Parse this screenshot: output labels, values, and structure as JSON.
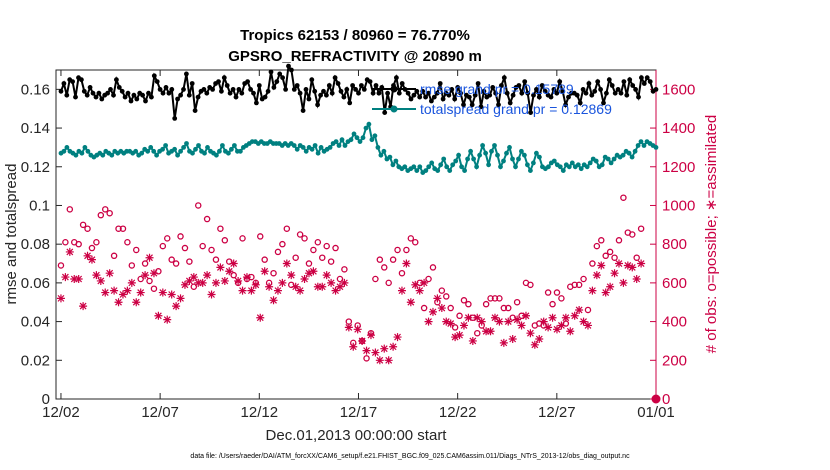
{
  "chart_data": {
    "type": "line",
    "title_line1": "Tropics 62153 / 80960 = 76.770%",
    "title_line2": "GPSRO_REFRACTIVITY @ 20890 m",
    "xlabel": "Dec.01,2013 00:00:00 start",
    "ylabel_left": "rmse and totalspread",
    "ylabel_right": "# of obs: o=possible; ∗=assimilated",
    "x_ticks": [
      "12/02",
      "12/07",
      "12/12",
      "12/17",
      "12/22",
      "12/27",
      "01/01"
    ],
    "x_tick_days": [
      1,
      6,
      11,
      16,
      21,
      26,
      31
    ],
    "xlim_days": [
      0.75,
      31
    ],
    "y_left_ticks": [
      "0",
      "0.02",
      "0.04",
      "0.06",
      "0.08",
      "0.1",
      "0.12",
      "0.14",
      "0.16"
    ],
    "y_left_lim": [
      0,
      0.17
    ],
    "y_right_ticks": [
      "0",
      "200",
      "400",
      "600",
      "800",
      "1000",
      "1200",
      "1400",
      "1600"
    ],
    "y_right_lim": [
      0,
      1700
    ],
    "footnote": "data file: /Users/raeder/DAI/ATM_forcXX/CAM6_setup/f.e21.FHIST_BGC.f09_025.CAM6assim.011/Diags_NTrS_2013-12/obs_diag_output.nc",
    "legend_placement": "top-right",
    "series": [
      {
        "name": "rmse",
        "legend_label": "rmse grand pr = 0.15789",
        "color": "#000000",
        "marker": "filled-circle",
        "axis": "left",
        "values": [
          0.159,
          0.163,
          0.157,
          0.165,
          0.164,
          0.156,
          0.166,
          0.165,
          0.159,
          0.157,
          0.161,
          0.158,
          0.156,
          0.158,
          0.155,
          0.157,
          0.158,
          0.16,
          0.157,
          0.165,
          0.161,
          0.159,
          0.156,
          0.158,
          0.154,
          0.157,
          0.155,
          0.158,
          0.157,
          0.154,
          0.158,
          0.156,
          0.167,
          0.164,
          0.16,
          0.158,
          0.161,
          0.158,
          0.16,
          0.145,
          0.155,
          0.157,
          0.16,
          0.168,
          0.157,
          0.163,
          0.149,
          0.156,
          0.159,
          0.16,
          0.158,
          0.161,
          0.16,
          0.163,
          0.164,
          0.159,
          0.166,
          0.162,
          0.158,
          0.16,
          0.156,
          0.16,
          0.158,
          0.163,
          0.164,
          0.16,
          0.158,
          0.153,
          0.162,
          0.155,
          0.156,
          0.159,
          0.169,
          0.161,
          0.164,
          0.168,
          0.166,
          0.16,
          0.172,
          0.17,
          0.16,
          0.162,
          0.158,
          0.149,
          0.16,
          0.155,
          0.165,
          0.159,
          0.152,
          0.157,
          0.159,
          0.157,
          0.162,
          0.158,
          0.166,
          0.163,
          0.159,
          0.156,
          0.16,
          0.153,
          0.162,
          0.16,
          0.158,
          0.162,
          0.16,
          0.165,
          0.164,
          0.158,
          0.162,
          0.158,
          0.161,
          0.148,
          0.158,
          0.151,
          0.162,
          0.166,
          0.158,
          0.163,
          0.16,
          0.158,
          0.155,
          0.157,
          0.159,
          0.156,
          0.159,
          0.156,
          0.158,
          0.154,
          0.156,
          0.158,
          0.163,
          0.155,
          0.158,
          0.157,
          0.16,
          0.155,
          0.161,
          0.158,
          0.152,
          0.157,
          0.156,
          0.152,
          0.157,
          0.163,
          0.151,
          0.159,
          0.156,
          0.157,
          0.161,
          0.158,
          0.152,
          0.162,
          0.166,
          0.158,
          0.153,
          0.157,
          0.161,
          0.162,
          0.158,
          0.164,
          0.158,
          0.148,
          0.157,
          0.16,
          0.156,
          0.162,
          0.159,
          0.157,
          0.156,
          0.16,
          0.158,
          0.164,
          0.159,
          0.152,
          0.156,
          0.158,
          0.158,
          0.157,
          0.153,
          0.16,
          0.158,
          0.163,
          0.157,
          0.159,
          0.164,
          0.16,
          0.153,
          0.158,
          0.165,
          0.162,
          0.158,
          0.16,
          0.158,
          0.164,
          0.157,
          0.165,
          0.162,
          0.16,
          0.156,
          0.166,
          0.163,
          0.166,
          0.164,
          0.159,
          0.16
        ]
      },
      {
        "name": "totalspread",
        "legend_label": "totalspread grand pr = 0.12869",
        "color": "#008080",
        "marker": "filled-circle",
        "axis": "left",
        "values": [
          0.127,
          0.128,
          0.13,
          0.128,
          0.127,
          0.126,
          0.128,
          0.127,
          0.13,
          0.128,
          0.126,
          0.125,
          0.126,
          0.127,
          0.126,
          0.128,
          0.127,
          0.126,
          0.128,
          0.127,
          0.128,
          0.127,
          0.128,
          0.128,
          0.127,
          0.128,
          0.126,
          0.127,
          0.129,
          0.128,
          0.13,
          0.128,
          0.126,
          0.128,
          0.129,
          0.131,
          0.127,
          0.128,
          0.129,
          0.126,
          0.128,
          0.13,
          0.132,
          0.128,
          0.127,
          0.129,
          0.131,
          0.128,
          0.127,
          0.13,
          0.128,
          0.127,
          0.126,
          0.128,
          0.131,
          0.128,
          0.127,
          0.129,
          0.131,
          0.128,
          0.128,
          0.13,
          0.131,
          0.132,
          0.133,
          0.133,
          0.132,
          0.133,
          0.132,
          0.132,
          0.133,
          0.132,
          0.132,
          0.132,
          0.131,
          0.132,
          0.131,
          0.132,
          0.131,
          0.129,
          0.131,
          0.13,
          0.128,
          0.13,
          0.129,
          0.131,
          0.127,
          0.13,
          0.128,
          0.129,
          0.13,
          0.132,
          0.133,
          0.131,
          0.134,
          0.131,
          0.133,
          0.134,
          0.137,
          0.135,
          0.133,
          0.135,
          0.14,
          0.142,
          0.134,
          0.136,
          0.13,
          0.126,
          0.128,
          0.124,
          0.125,
          0.121,
          0.123,
          0.12,
          0.119,
          0.12,
          0.118,
          0.119,
          0.12,
          0.118,
          0.12,
          0.117,
          0.118,
          0.12,
          0.122,
          0.119,
          0.118,
          0.121,
          0.124,
          0.12,
          0.118,
          0.121,
          0.123,
          0.126,
          0.12,
          0.118,
          0.124,
          0.128,
          0.124,
          0.12,
          0.126,
          0.131,
          0.127,
          0.121,
          0.128,
          0.131,
          0.126,
          0.12,
          0.123,
          0.127,
          0.13,
          0.124,
          0.12,
          0.124,
          0.128,
          0.126,
          0.121,
          0.118,
          0.122,
          0.127,
          0.125,
          0.12,
          0.119,
          0.12,
          0.122,
          0.123,
          0.121,
          0.12,
          0.118,
          0.121,
          0.12,
          0.122,
          0.12,
          0.121,
          0.119,
          0.121,
          0.12,
          0.122,
          0.124,
          0.123,
          0.12,
          0.121,
          0.125,
          0.124,
          0.122,
          0.124,
          0.126,
          0.125,
          0.126,
          0.128,
          0.127,
          0.125,
          0.128,
          0.131,
          0.133,
          0.131,
          0.133,
          0.132,
          0.131,
          0.13
        ]
      },
      {
        "name": "possible",
        "color": "#cc0044",
        "marker": "open-circle",
        "axis": "right",
        "values": [
          690,
          810,
          980,
          810,
          800,
          900,
          880,
          780,
          810,
          950,
          980,
          960,
          740,
          880,
          880,
          810,
          690,
          770,
          620,
          700,
          610,
          570,
          660,
          790,
          830,
          720,
          700,
          840,
          780,
          710,
          580,
          1000,
          790,
          930,
          770,
          720,
          880,
          820,
          710,
          640,
          600,
          830,
          620,
          630,
          600,
          840,
          720,
          600,
          650,
          760,
          800,
          880,
          590,
          730,
          850,
          830,
          700,
          770,
          810,
          730,
          790,
          710,
          780,
          620,
          670,
          400,
          290,
          380,
          300,
          210,
          340,
          620,
          720,
          680,
          600,
          720,
          770,
          650,
          770,
          830,
          810,
          600,
          470,
          620,
          680,
          500,
          560,
          530,
          470,
          370,
          430,
          510,
          490,
          420,
          340,
          380,
          490,
          520,
          520,
          520,
          470,
          470,
          420,
          500,
          430,
          600,
          590,
          380,
          390,
          380,
          550,
          490,
          550,
          520,
          390,
          580,
          590,
          590,
          620,
          460,
          700,
          790,
          820,
          740,
          760,
          730,
          820,
          1040,
          860,
          850,
          730,
          880
        ]
      },
      {
        "name": "assimilated",
        "color": "#cc0044",
        "marker": "asterisk",
        "axis": "right",
        "values": [
          520,
          630,
          760,
          620,
          620,
          480,
          740,
          720,
          640,
          610,
          550,
          650,
          560,
          500,
          540,
          560,
          600,
          500,
          550,
          640,
          730,
          650,
          430,
          550,
          410,
          540,
          480,
          520,
          590,
          610,
          630,
          600,
          600,
          640,
          540,
          600,
          680,
          610,
          660,
          700,
          610,
          560,
          630,
          560,
          590,
          420,
          660,
          580,
          510,
          560,
          600,
          700,
          640,
          580,
          560,
          620,
          650,
          660,
          580,
          580,
          640,
          600,
          560,
          580,
          600,
          370,
          270,
          360,
          300,
          250,
          330,
          240,
          200,
          260,
          200,
          270,
          320,
          560,
          700,
          500,
          590,
          560,
          600,
          400,
          450,
          520,
          470,
          400,
          390,
          320,
          330,
          380,
          420,
          300,
          420,
          400,
          350,
          350,
          420,
          400,
          290,
          400,
          310,
          410,
          380,
          430,
          340,
          280,
          310,
          400,
          370,
          420,
          360,
          380,
          420,
          350,
          430,
          460,
          400,
          380,
          560,
          640,
          690,
          550,
          580,
          650,
          700,
          600,
          690,
          680,
          620,
          700
        ]
      }
    ]
  }
}
